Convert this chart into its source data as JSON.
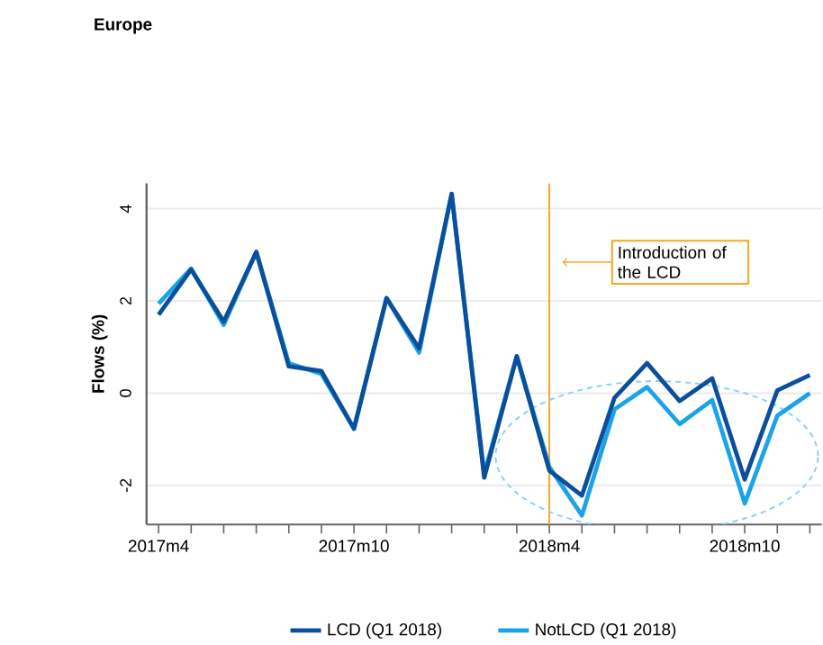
{
  "chart_data": {
    "type": "line",
    "title": "Europe",
    "ylabel": "Flows (%)",
    "categories": [
      "2017m4",
      null,
      null,
      null,
      null,
      null,
      "2017m10",
      null,
      null,
      null,
      null,
      null,
      "2018m4",
      null,
      null,
      null,
      null,
      null,
      "2018m10",
      null,
      null
    ],
    "series": [
      {
        "name": "LCD (Q1 2018)",
        "color": "#0b4f9c",
        "values": [
          1.7,
          2.68,
          1.55,
          3.06,
          0.58,
          0.48,
          -0.77,
          2.06,
          0.97,
          4.32,
          -1.83,
          0.8,
          -1.68,
          -2.22,
          -0.1,
          0.65,
          -0.17,
          0.32,
          -1.87,
          0.06,
          0.39
        ]
      },
      {
        "name": "NotLCD (Q1 2018)",
        "color": "#1aa3e8",
        "values": [
          1.94,
          2.7,
          1.48,
          3.06,
          0.65,
          0.42,
          -0.77,
          2.06,
          0.88,
          4.32,
          -1.75,
          0.8,
          -1.6,
          -2.65,
          -0.35,
          0.13,
          -0.67,
          -0.15,
          -2.39,
          -0.49,
          0.0
        ]
      }
    ],
    "ylim": [
      -2.85,
      4.55
    ],
    "yticks": [
      -2,
      0,
      2,
      4
    ],
    "ref_lines": [
      {
        "axis": "x",
        "value": "2018m4",
        "label": "Introduction of the LCD",
        "color": "#f5a623"
      }
    ],
    "grid": "y",
    "legend": "bottom",
    "line_style": "solid",
    "marker": "none"
  }
}
